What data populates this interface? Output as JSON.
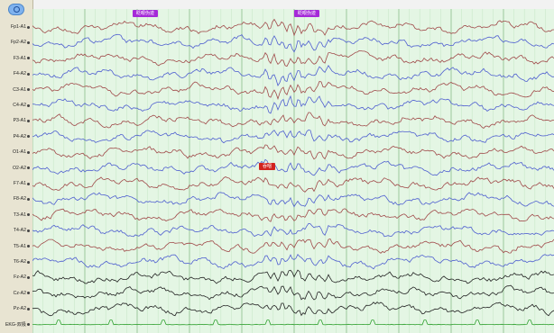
{
  "channels": [
    {
      "label": "Fp1-A1",
      "color": "#a04a4a"
    },
    {
      "label": "Fp2-A2",
      "color": "#4f5fd0"
    },
    {
      "label": "F3-A1",
      "color": "#a04a4a"
    },
    {
      "label": "F4-A2",
      "color": "#4f5fd0"
    },
    {
      "label": "C3-A1",
      "color": "#a04a4a"
    },
    {
      "label": "C4-A2",
      "color": "#4f5fd0"
    },
    {
      "label": "P3-A1",
      "color": "#a04a4a"
    },
    {
      "label": "P4-A2",
      "color": "#4f5fd0"
    },
    {
      "label": "O1-A1",
      "color": "#a04a4a"
    },
    {
      "label": "O2-A2",
      "color": "#4f5fd0"
    },
    {
      "label": "F7-A1",
      "color": "#a04a4a"
    },
    {
      "label": "F8-A2",
      "color": "#4f5fd0"
    },
    {
      "label": "T3-A1",
      "color": "#a04a4a"
    },
    {
      "label": "T4-A2",
      "color": "#4f5fd0"
    },
    {
      "label": "T5-A1",
      "color": "#a04a4a"
    },
    {
      "label": "T6-A2",
      "color": "#4f5fd0"
    },
    {
      "label": "Fz-A2",
      "color": "#222222"
    },
    {
      "label": "Cz-A2",
      "color": "#222222"
    },
    {
      "label": "Pz-A2",
      "color": "#222222"
    },
    {
      "label": "EKG-双极",
      "color": "#2ea02e"
    }
  ],
  "markers": [
    {
      "text": "眨眼伪迹",
      "color": "#a52ad8"
    },
    {
      "text": "眨眼伪迹",
      "color": "#a52ad8"
    },
    {
      "text": "吞咽",
      "color": "#d2231e"
    }
  ],
  "colors": {
    "grid_major": "#9bc89b",
    "grid_minor": "#c8e8c8",
    "background": "#e4f6e4"
  }
}
